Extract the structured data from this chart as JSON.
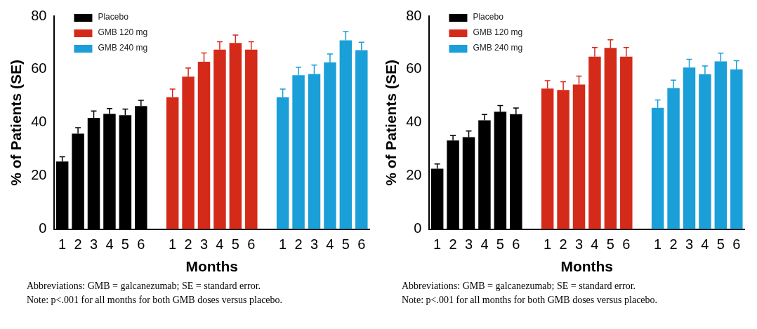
{
  "chart_data": [
    {
      "type": "bar",
      "xlabel": "Months",
      "ylabel": "% of Patients (SE)",
      "categories": [
        "1",
        "2",
        "3",
        "4",
        "5",
        "6",
        null,
        "1",
        "2",
        "3",
        "4",
        "5",
        "6",
        null,
        "1",
        "2",
        "3",
        "4",
        "5",
        "6"
      ],
      "series": [
        {
          "name": "Placebo",
          "color": "#000000",
          "values": [
            25.4,
            35.9,
            41.8,
            43.3,
            42.8,
            46.2,
            null,
            null,
            null,
            null,
            null,
            null,
            null,
            null,
            null,
            null,
            null,
            null,
            null,
            null
          ],
          "errors": [
            1.8,
            2.2,
            2.6,
            2,
            2.3,
            2.2,
            null,
            null,
            null,
            null,
            null,
            null,
            null,
            null,
            null,
            null,
            null,
            null,
            null,
            null
          ]
        },
        {
          "name": "GMB 120 mg",
          "color": "#d42a1a",
          "values": [
            null,
            null,
            null,
            null,
            null,
            null,
            null,
            49.6,
            57.3,
            62.9,
            67.4,
            69.9,
            67.4,
            null,
            null,
            null,
            null,
            null,
            null,
            null
          ],
          "errors": [
            null,
            null,
            null,
            null,
            null,
            null,
            null,
            3,
            3.2,
            3.3,
            3,
            3,
            3,
            null,
            null,
            null,
            null,
            null,
            null,
            null
          ]
        },
        {
          "name": "GMB 240 mg",
          "color": "#1a9fd8",
          "values": [
            null,
            null,
            null,
            null,
            null,
            null,
            null,
            null,
            null,
            null,
            null,
            null,
            null,
            null,
            49.6,
            57.8,
            58.3,
            62.6,
            70.9,
            67.2
          ],
          "errors": [
            null,
            null,
            null,
            null,
            null,
            null,
            null,
            null,
            null,
            null,
            null,
            null,
            null,
            null,
            3,
            3,
            3.3,
            3.2,
            3.3,
            3
          ]
        }
      ],
      "ylim": [
        0,
        80
      ],
      "yticks": [
        0,
        20,
        40,
        60,
        80
      ],
      "grid": false,
      "legend": "top left",
      "annotations": [
        "Abbreviations:  GMB = galcanezumab; SE = standard error.",
        "Note:  p<.001 for all months for both GMB doses versus placebo."
      ]
    },
    {
      "type": "bar",
      "xlabel": "Months",
      "ylabel": "% of Patients (SE)",
      "categories": [
        "1",
        "2",
        "3",
        "4",
        "5",
        "6",
        null,
        "1",
        "2",
        "3",
        "4",
        "5",
        "6",
        null,
        "1",
        "2",
        "3",
        "4",
        "5",
        "6"
      ],
      "series": [
        {
          "name": "Placebo",
          "color": "#000000",
          "values": [
            22.7,
            33.3,
            34.6,
            40.9,
            44.1,
            43.2,
            null,
            null,
            null,
            null,
            null,
            null,
            null,
            null,
            null,
            null,
            null,
            null,
            null,
            null
          ],
          "errors": [
            1.8,
            1.9,
            2.3,
            2.2,
            2.3,
            2.3,
            null,
            null,
            null,
            null,
            null,
            null,
            null,
            null,
            null,
            null,
            null,
            null,
            null,
            null
          ]
        },
        {
          "name": "GMB 120 mg",
          "color": "#d42a1a",
          "values": [
            null,
            null,
            null,
            null,
            null,
            null,
            null,
            52.8,
            52.3,
            54.3,
            64.8,
            68.1,
            64.8,
            null,
            null,
            null,
            null,
            null,
            null,
            null
          ],
          "errors": [
            null,
            null,
            null,
            null,
            null,
            null,
            null,
            3,
            3.1,
            3.2,
            3.4,
            3,
            3.4,
            null,
            null,
            null,
            null,
            null,
            null,
            null
          ]
        },
        {
          "name": "GMB 240 mg",
          "color": "#1a9fd8",
          "values": [
            null,
            null,
            null,
            null,
            null,
            null,
            null,
            null,
            null,
            null,
            null,
            null,
            null,
            null,
            45.6,
            53,
            60.7,
            58.2,
            63,
            60
          ],
          "errors": [
            null,
            null,
            null,
            null,
            null,
            null,
            null,
            null,
            null,
            null,
            null,
            null,
            null,
            null,
            2.9,
            3,
            3.1,
            3.1,
            3.1,
            3.3
          ]
        }
      ],
      "ylim": [
        0,
        80
      ],
      "yticks": [
        0,
        20,
        40,
        60,
        80
      ],
      "grid": false,
      "legend": "top left",
      "annotations": [
        "Abbreviations:  GMB = galcanezumab; SE = standard error.",
        "Note:  p<.001 for all months for both GMB doses versus placebo."
      ]
    }
  ]
}
